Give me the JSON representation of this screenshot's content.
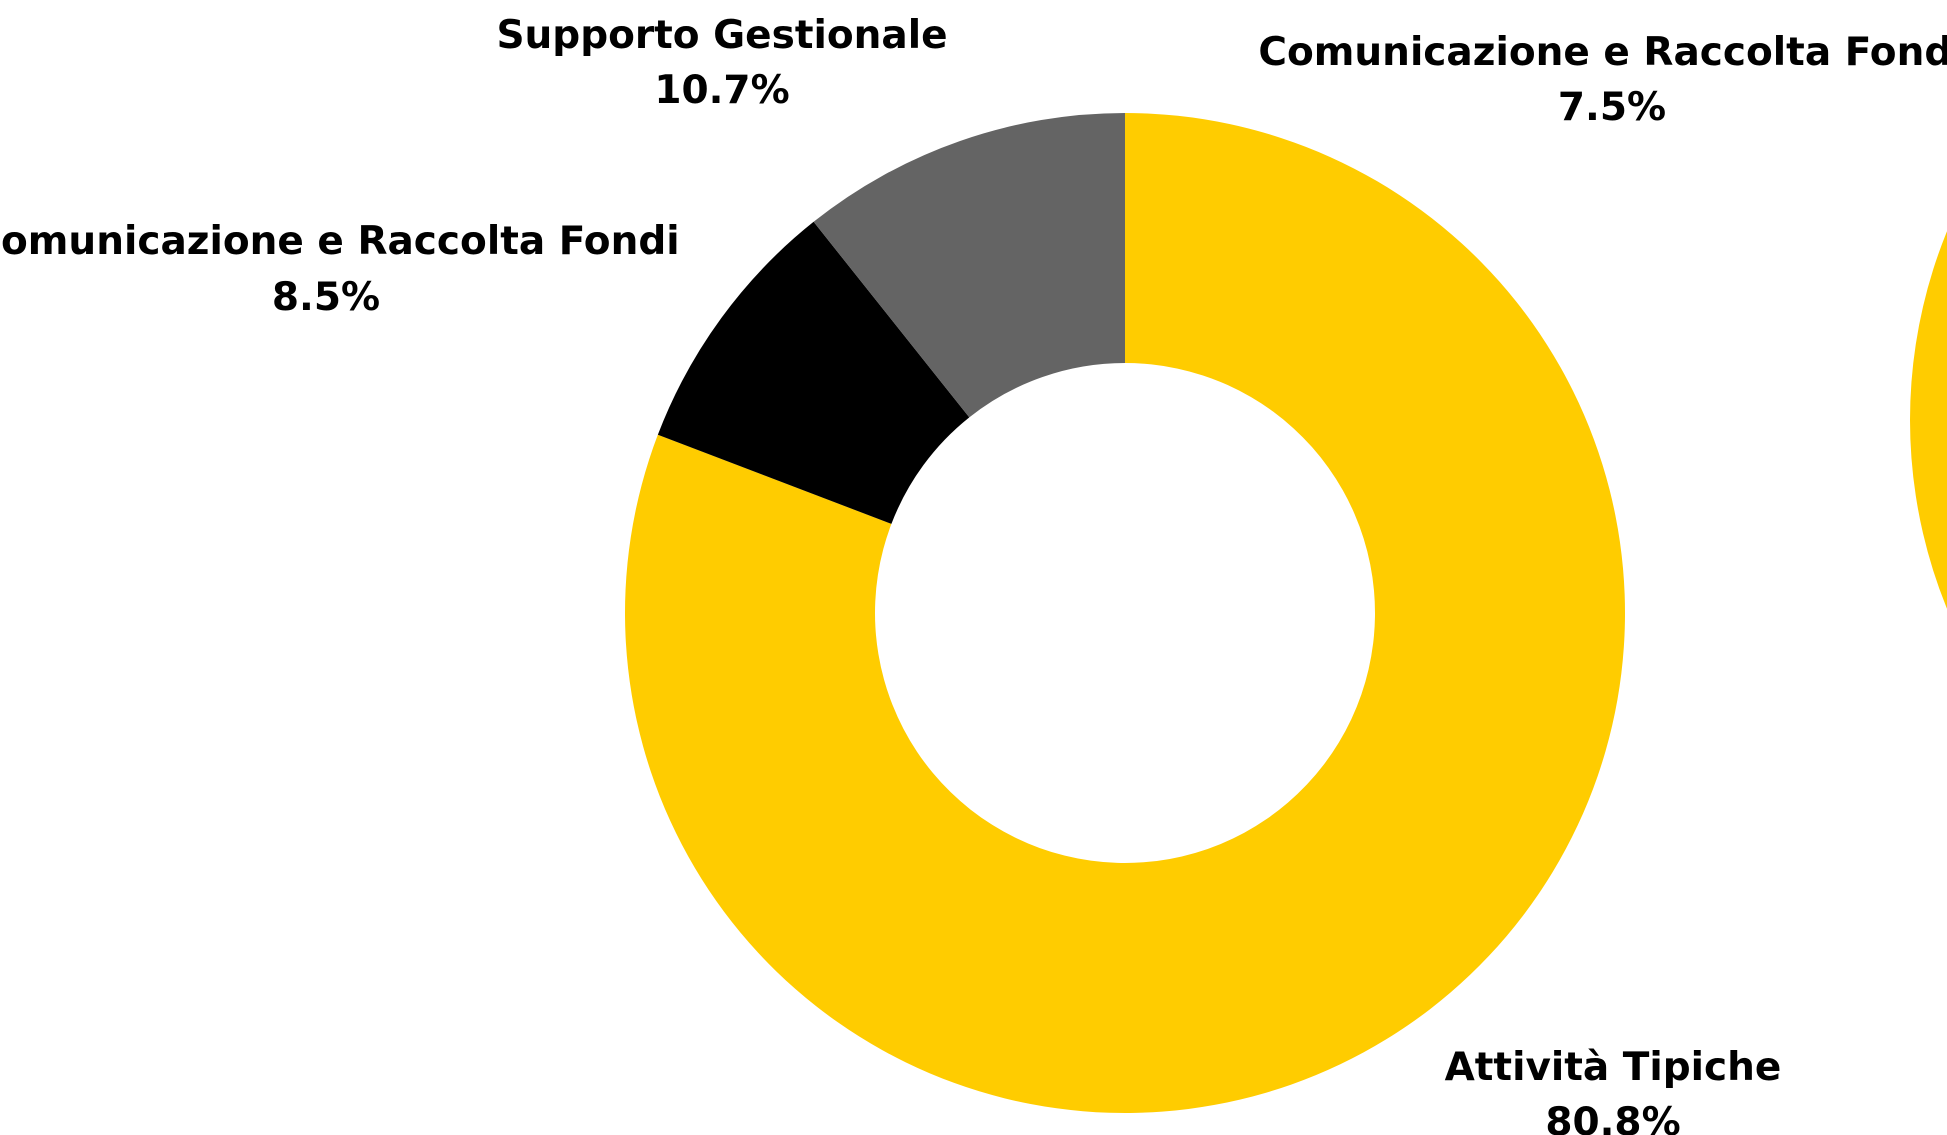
{
  "chart_data": [
    {
      "type": "pie",
      "categories": [
        "Attività Tipiche",
        "Comunicazione e Raccolta Fondi",
        "Supporto Gestionale"
      ],
      "values": [
        80.8,
        8.5,
        10.7
      ],
      "value_labels": [
        "80.8%",
        "8.5%",
        "10.7%"
      ],
      "donut": true,
      "colors": [
        "#FFCC00",
        "#000000",
        "#646464"
      ]
    },
    {
      "type": "pie",
      "categories": [
        "Comunicazione e Raccolta Fondi"
      ],
      "values": [
        7.5
      ],
      "value_labels": [
        "7.5%"
      ],
      "donut": true,
      "colors": [
        "#FFCC00"
      ]
    }
  ]
}
